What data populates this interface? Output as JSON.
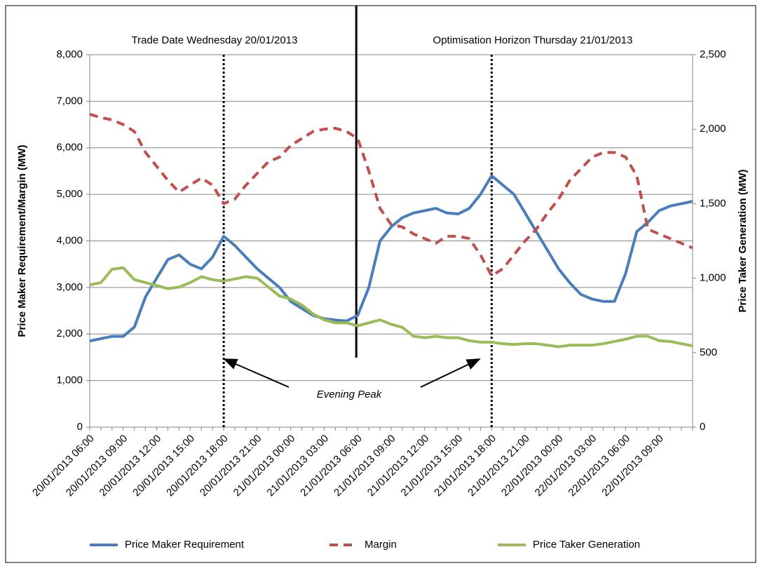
{
  "chart_data": {
    "type": "line",
    "annotations": {
      "left_header": "Trade Date Wednesday 20/01/2013",
      "right_header": "Optimisation Horizon Thursday 21/01/2013",
      "peak": "Evening Peak"
    },
    "ylabel": "Price Maker Requirement/Margin (MW)",
    "y2label": "Price Taker Generation (MW)",
    "categories": [
      "20/01/2013 06:00",
      null,
      null,
      "20/01/2013 09:00",
      null,
      null,
      "20/01/2013 12:00",
      null,
      null,
      "20/01/2013 15:00",
      null,
      null,
      "20/01/2013 18:00",
      null,
      null,
      "20/01/2013 21:00",
      null,
      null,
      "21/01/2013 00:00",
      null,
      null,
      "21/01/2013 03:00",
      null,
      null,
      "21/01/2013 06:00",
      null,
      null,
      "21/01/2013 09:00",
      null,
      null,
      "21/01/2013 12:00",
      null,
      null,
      "21/01/2013 15:00",
      null,
      null,
      "21/01/2013 18:00",
      null,
      null,
      "21/01/2013 21:00",
      null,
      null,
      "22/01/2013 00:00",
      null,
      null,
      "22/01/2013 03:00",
      null,
      null,
      "22/01/2013 06:00",
      null,
      null,
      "22/01/2013 09:00",
      null,
      null,
      null
    ],
    "series": [
      {
        "name": "Price Maker Requirement",
        "color": "#4a7ebb",
        "dash": false,
        "values": [
          1850,
          1900,
          1950,
          1950,
          2150,
          2800,
          3200,
          3600,
          3700,
          3500,
          3400,
          3650,
          4100,
          3900,
          3650,
          3400,
          3200,
          3000,
          2700,
          2550,
          2400,
          2330,
          2300,
          2280,
          2400,
          3000,
          4000,
          4300,
          4500,
          4600,
          4650,
          4700,
          4600,
          4580,
          4700,
          5000,
          5400,
          5200,
          5000,
          4600,
          4200,
          3800,
          3400,
          3100,
          2850,
          2750,
          2700,
          2700,
          3300,
          4200,
          4400,
          4650,
          4750,
          4800,
          4850
        ]
      },
      {
        "name": "Margin",
        "color": "#c0504d",
        "dash": true,
        "values": [
          6720,
          6650,
          6600,
          6500,
          6350,
          5900,
          5600,
          5300,
          5050,
          5200,
          5350,
          5200,
          4800,
          4900,
          5200,
          5450,
          5700,
          5800,
          6050,
          6200,
          6350,
          6400,
          6420,
          6350,
          6200,
          5500,
          4700,
          4350,
          4300,
          4150,
          4050,
          3950,
          4100,
          4100,
          4050,
          3700,
          3250,
          3400,
          3700,
          4000,
          4250,
          4600,
          4900,
          5300,
          5550,
          5800,
          5900,
          5900,
          5800,
          5400,
          4250,
          4150,
          4050,
          3950,
          3850
        ]
      },
      {
        "name": "Price Taker Generation",
        "color": "#9bbb59",
        "dash": false,
        "axis": "y2",
        "values": [
          955,
          970,
          1060,
          1070,
          990,
          970,
          950,
          930,
          940,
          970,
          1010,
          990,
          980,
          995,
          1010,
          1000,
          940,
          880,
          860,
          820,
          760,
          720,
          700,
          700,
          680,
          700,
          720,
          690,
          670,
          610,
          600,
          610,
          600,
          600,
          580,
          570,
          570,
          560,
          555,
          560,
          560,
          550,
          540,
          550,
          550,
          550,
          560,
          575,
          590,
          610,
          610,
          580,
          575,
          560,
          545
        ]
      }
    ],
    "ylim": [
      0,
      8000
    ],
    "yticks": [
      0,
      {
        "value": 1000,
        "label": "1,000"
      },
      {
        "value": 2000,
        "label": "2,000"
      },
      {
        "value": 3000,
        "label": "3,000"
      },
      {
        "value": 4000,
        "label": "4,000"
      },
      {
        "value": 5000,
        "label": "5,000"
      },
      {
        "value": 6000,
        "label": "6,000"
      },
      {
        "value": 7000,
        "label": "7,000"
      },
      {
        "value": 8000,
        "label": "8,000"
      }
    ],
    "y2lim": [
      0,
      2500
    ],
    "y2ticks": [
      0,
      500,
      {
        "value": 1000,
        "label": "1,000"
      },
      {
        "value": 1500,
        "label": "1,500"
      },
      {
        "value": 2000,
        "label": "2,000"
      },
      {
        "value": 2500,
        "label": "2,500"
      }
    ],
    "grid": true,
    "legend": "bottom"
  }
}
